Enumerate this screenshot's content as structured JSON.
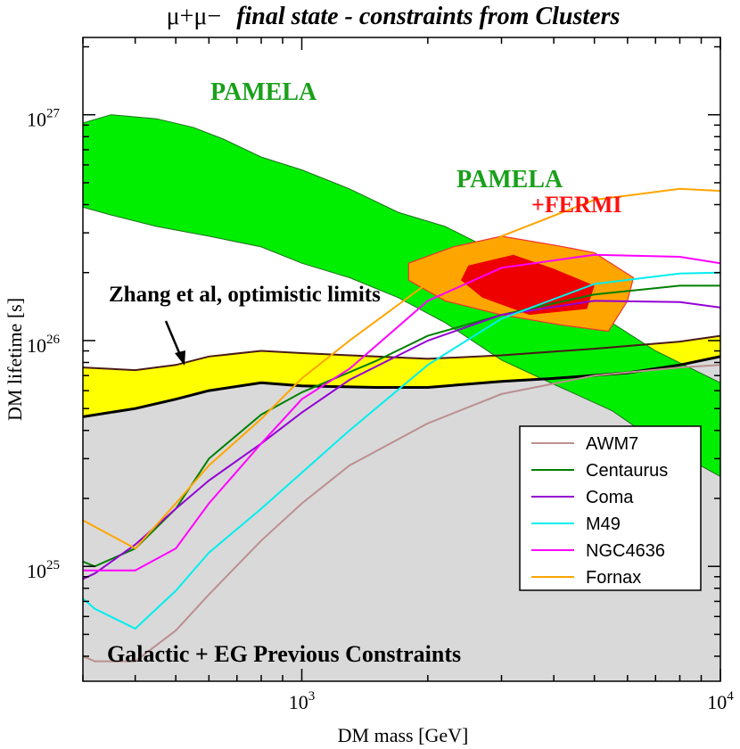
{
  "chart_data": {
    "type": "line",
    "title_prefix": "μ+μ−",
    "title_main": "final state - constraints from Clusters",
    "xlabel": "DM mass [GeV]",
    "ylabel": "DM lifetime [s]",
    "xscale": "log",
    "yscale": "log",
    "xlim": [
      300,
      10000
    ],
    "ylim": [
      3.1e+24,
      2.2e+27
    ],
    "x_ticks": [
      {
        "value": 1000,
        "base": "10",
        "exp": "3"
      },
      {
        "value": 10000,
        "base": "10",
        "exp": "4"
      }
    ],
    "y_ticks": [
      {
        "value": 1e+25,
        "base": "10",
        "exp": "25"
      },
      {
        "value": 1e+26,
        "base": "10",
        "exp": "26"
      },
      {
        "value": 1e+27,
        "base": "10",
        "exp": "27"
      }
    ],
    "regions": [
      {
        "name": "Galactic + EG Previous Constraints",
        "color": "#d9d9d9",
        "upper": [
          [
            300,
            4.6e+25
          ],
          [
            400,
            5e+25
          ],
          [
            500,
            5.5e+25
          ],
          [
            600,
            6e+25
          ],
          [
            800,
            6.5e+25
          ],
          [
            1000,
            6.3e+25
          ],
          [
            1500,
            6.2e+25
          ],
          [
            2000,
            6.2e+25
          ],
          [
            3000,
            6.6e+25
          ],
          [
            4000,
            6.8e+25
          ],
          [
            6000,
            7.2e+25
          ],
          [
            8000,
            7.8e+25
          ],
          [
            10000,
            8.5e+25
          ]
        ]
      },
      {
        "name": "Zhang et al, optimistic limits",
        "color": "#ffff00",
        "lower": [
          [
            300,
            4.6e+25
          ],
          [
            400,
            5e+25
          ],
          [
            500,
            5.5e+25
          ],
          [
            600,
            6e+25
          ],
          [
            800,
            6.5e+25
          ],
          [
            1000,
            6.3e+25
          ],
          [
            1500,
            6.2e+25
          ],
          [
            2000,
            6.2e+25
          ],
          [
            3000,
            6.6e+25
          ],
          [
            4000,
            6.8e+25
          ],
          [
            6000,
            7.2e+25
          ],
          [
            8000,
            7.8e+25
          ],
          [
            10000,
            8.5e+25
          ]
        ],
        "upper": [
          [
            300,
            7.6e+25
          ],
          [
            400,
            7.4e+25
          ],
          [
            500,
            7.8e+25
          ],
          [
            600,
            8.5e+25
          ],
          [
            800,
            9e+25
          ],
          [
            1000,
            8.8e+25
          ],
          [
            1500,
            8.5e+25
          ],
          [
            2000,
            8.3e+25
          ],
          [
            3000,
            8.6e+25
          ],
          [
            5000,
            9.2e+25
          ],
          [
            8000,
            9.9e+25
          ],
          [
            10000,
            1.05e+26
          ]
        ]
      },
      {
        "name": "PAMELA",
        "color": "#00ee00",
        "upper": [
          [
            300,
            9.2e+26
          ],
          [
            350,
            1e+27
          ],
          [
            450,
            9.6e+26
          ],
          [
            550,
            8.8e+26
          ],
          [
            650,
            7.8e+26
          ],
          [
            800,
            6.5e+26
          ],
          [
            1000,
            5.7e+26
          ],
          [
            1300,
            4.7e+26
          ],
          [
            1700,
            3.7e+26
          ],
          [
            2200,
            3.2e+26
          ],
          [
            3000,
            2.4e+26
          ],
          [
            4000,
            1.7e+26
          ],
          [
            5500,
            1.2e+26
          ],
          [
            7000,
            9e+25
          ],
          [
            10000,
            6.5e+25
          ]
        ],
        "lower": [
          [
            300,
            3.9e+26
          ],
          [
            350,
            3.6e+26
          ],
          [
            450,
            3.2e+26
          ],
          [
            600,
            2.9e+26
          ],
          [
            800,
            2.6e+26
          ],
          [
            1000,
            2.2e+26
          ],
          [
            1300,
            1.9e+26
          ],
          [
            1700,
            1.55e+26
          ],
          [
            2200,
            1.2e+26
          ],
          [
            3000,
            8.2e+25
          ],
          [
            4000,
            6.4e+25
          ],
          [
            5500,
            4.9e+25
          ],
          [
            7000,
            3.6e+25
          ],
          [
            10000,
            2.5e+25
          ]
        ]
      }
    ],
    "fit_region": {
      "name": "PAMELA +FERMI",
      "outer_color": "#ffa500",
      "inner_color": "#ee0000",
      "outer": [
        [
          1800,
          2.2e+26
        ],
        [
          2300,
          2.6e+26
        ],
        [
          3000,
          2.9e+26
        ],
        [
          4000,
          2.65e+26
        ],
        [
          5000,
          2.45e+26
        ],
        [
          6200,
          1.9e+26
        ],
        [
          6000,
          1.5e+26
        ],
        [
          5400,
          1.1e+26
        ],
        [
          4200,
          1.17e+26
        ],
        [
          3000,
          1.3e+26
        ],
        [
          2200,
          1.5e+26
        ],
        [
          1800,
          1.85e+26
        ]
      ],
      "inner": [
        [
          2500,
          2.15e+26
        ],
        [
          3200,
          2.4e+26
        ],
        [
          4000,
          2.08e+26
        ],
        [
          5000,
          1.75e+26
        ],
        [
          4800,
          1.38e+26
        ],
        [
          3500,
          1.3e+26
        ],
        [
          2700,
          1.55e+26
        ],
        [
          2400,
          1.85e+26
        ]
      ]
    },
    "series": [
      {
        "name": "AWM7",
        "color": "#bc8f8f",
        "x": [
          300,
          320,
          400,
          500,
          600,
          800,
          1000,
          1300,
          2000,
          3000,
          5000,
          8000,
          10000
        ],
        "y": [
          4e+24,
          3.8e+24,
          3.8e+24,
          5.2e+24,
          7.5e+24,
          1.3e+25,
          1.9e+25,
          2.8e+25,
          4.3e+25,
          5.8e+25,
          7e+25,
          7.6e+25,
          7.8e+25
        ]
      },
      {
        "name": "Centaurus",
        "color": "#008000",
        "x": [
          300,
          320,
          400,
          500,
          600,
          800,
          1000,
          1500,
          2000,
          3000,
          5000,
          8000,
          10000
        ],
        "y": [
          1.05e+25,
          1e+25,
          1.2e+25,
          1.8e+25,
          3e+25,
          4.7e+25,
          5.9e+25,
          8.1e+25,
          1.05e+26,
          1.3e+26,
          1.6e+26,
          1.75e+26,
          1.75e+26
        ]
      },
      {
        "name": "Coma",
        "color": "#9400d3",
        "x": [
          300,
          320,
          400,
          500,
          600,
          800,
          1000,
          1300,
          2000,
          3000,
          5000,
          8000,
          10000
        ],
        "y": [
          8.8e+24,
          9.3e+24,
          1.25e+25,
          1.8e+25,
          2.4e+25,
          3.5e+25,
          4.8e+25,
          6.7e+25,
          1e+26,
          1.3e+26,
          1.5e+26,
          1.48e+26,
          1.4e+26
        ]
      },
      {
        "name": "M49",
        "color": "#00eeee",
        "x": [
          300,
          320,
          400,
          500,
          600,
          800,
          1000,
          1300,
          2000,
          3000,
          5000,
          8000,
          10000
        ],
        "y": [
          7.2e+24,
          6.5e+24,
          5.3e+24,
          7.8e+24,
          1.15e+25,
          1.8e+25,
          2.6e+25,
          4e+25,
          7.8e+25,
          1.25e+26,
          1.78e+26,
          1.98e+26,
          2e+26
        ]
      },
      {
        "name": "NGC4636",
        "color": "#ff00ff",
        "x": [
          300,
          320,
          400,
          500,
          600,
          800,
          1000,
          1300,
          2000,
          3000,
          5000,
          8000,
          10000
        ],
        "y": [
          9.6e+24,
          9.6e+24,
          9.6e+24,
          1.2e+25,
          1.9e+25,
          3.5e+25,
          5.5e+25,
          7.5e+25,
          1.5e+26,
          2.1e+26,
          2.4e+26,
          2.35e+26,
          2.2e+26
        ]
      },
      {
        "name": "Fornax",
        "color": "#ffa500",
        "x": [
          300,
          320,
          400,
          500,
          600,
          800,
          1000,
          1300,
          2000,
          3000,
          5000,
          8000,
          10000
        ],
        "y": [
          1.6e+25,
          1.5e+25,
          1.2e+25,
          1.9e+25,
          2.8e+25,
          4.5e+25,
          6.8e+25,
          1e+26,
          1.8e+26,
          2.9e+26,
          4.2e+26,
          4.7e+26,
          4.6e+26
        ]
      }
    ],
    "annotations": {
      "pamela": "PAMELA",
      "pamela_fermi_1": "PAMELA",
      "pamela_fermi_2": "+FERMI",
      "zhang": "Zhang et al, optimistic limits",
      "galactic": "Galactic + EG Previous Constraints"
    },
    "colors": {
      "frame": "#000000",
      "pamela_text": "#1aa01a",
      "fermi_text": "#ff1010",
      "region_edge_dark": "#4a1a1a",
      "fit_edge": "#ee3333"
    }
  }
}
